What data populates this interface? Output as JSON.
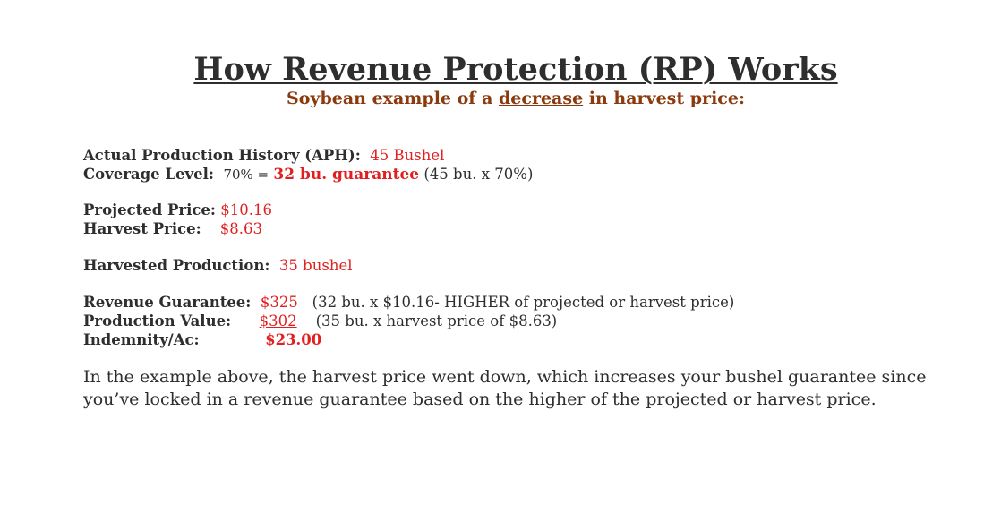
{
  "title": "How Revenue Protection (RP) Works",
  "subtitle": {
    "before": "Soybean example of a ",
    "emphasis": "decrease",
    "after": " in harvest price:"
  },
  "aph": {
    "label": "Actual Production History (APH):",
    "value": "45 Bushel"
  },
  "coverage": {
    "label": "Coverage Level:",
    "percent": "70% =",
    "guarantee": "32 bu. guarantee",
    "calc": "(45 bu. x 70%)"
  },
  "projected": {
    "label": "Projected Price:",
    "value": "$10.16"
  },
  "harvest": {
    "label": "Harvest Price:",
    "value": "$8.63"
  },
  "harvested_production": {
    "label": "Harvested Production:",
    "value": "35 bushel"
  },
  "revenue_guarantee": {
    "label": "Revenue Guarantee:",
    "value": "$325",
    "note": "(32 bu. x $10.16- HIGHER of projected or harvest price)"
  },
  "production_value": {
    "label": "Production Value:",
    "value": "$302",
    "note": "(35 bu. x harvest price of $8.63)"
  },
  "indemnity": {
    "label": "Indemnity/Ac:",
    "value": "$23.00"
  },
  "explanation": "In the example above, the harvest price went down, which increases your bushel guarantee since you’ve locked in a revenue guarantee based on the higher of the projected or harvest price.",
  "colors": {
    "accent_red": "#e02020",
    "subtitle_brown": "#8b3a0e",
    "text": "#2e2e2e"
  }
}
